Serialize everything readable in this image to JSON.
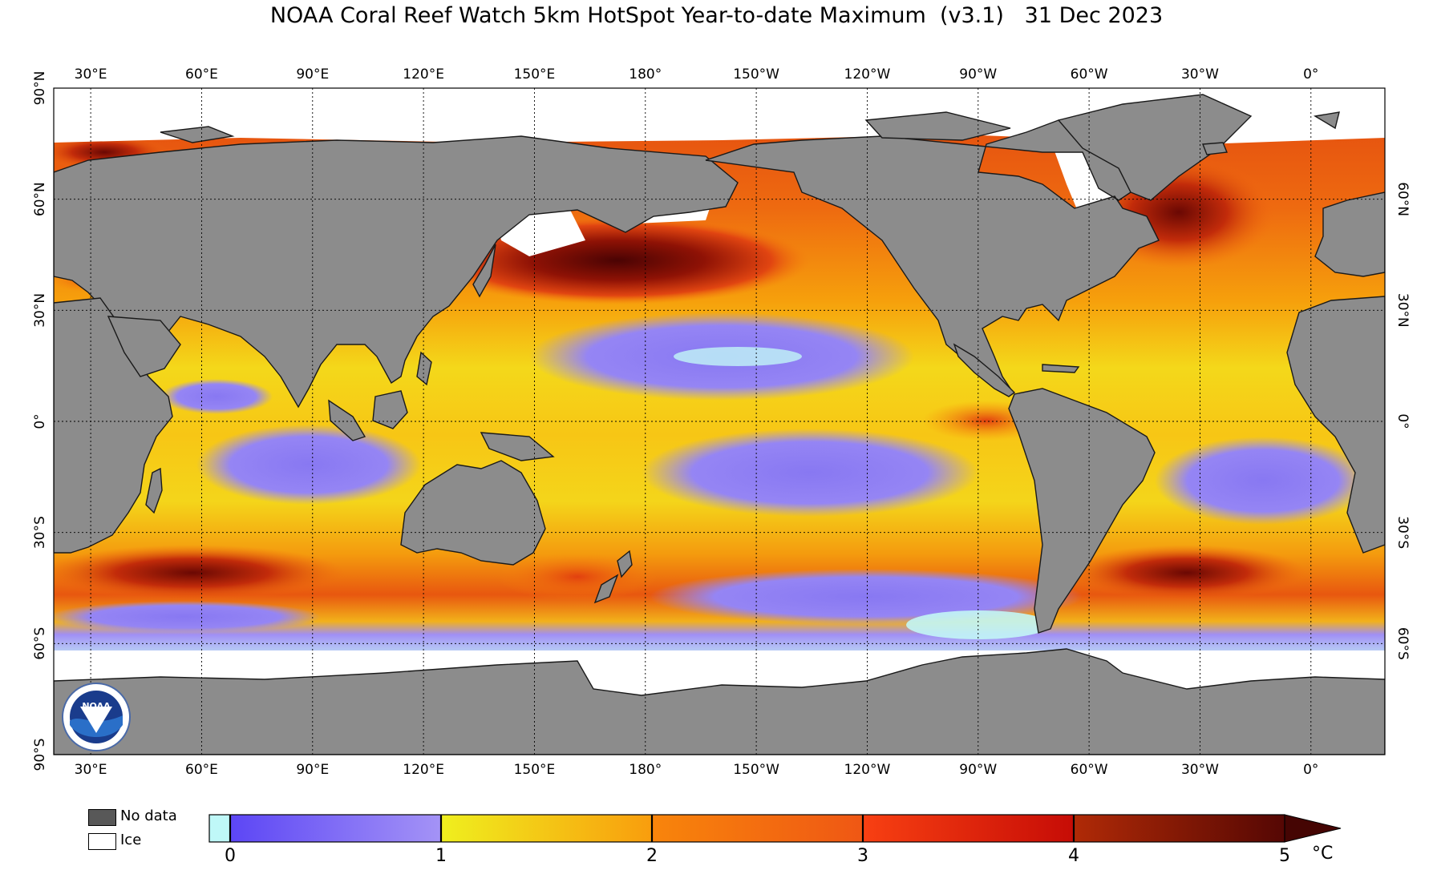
{
  "title": "NOAA Coral Reef Watch 5km HotSpot Year-to-date Maximum  (v3.1)   31 Dec 2023",
  "map": {
    "projection": "equirectangular",
    "lon_range": [
      20,
      380
    ],
    "lat_range": [
      -90,
      90
    ],
    "land_color": "#8c8c8c",
    "ice_color": "#ffffff",
    "grid_spacing_lon": 30,
    "grid_spacing_lat": 30,
    "gridlines_lon": [
      30,
      60,
      90,
      120,
      150,
      180,
      210,
      240,
      270,
      300,
      330,
      360
    ],
    "gridlines_lat": [
      60,
      30,
      0,
      -30,
      -60
    ],
    "lon_labels": [
      "30°E",
      "60°E",
      "90°E",
      "120°E",
      "150°E",
      "180°",
      "150°W",
      "120°W",
      "90°W",
      "60°W",
      "30°W",
      "0°"
    ],
    "lat_labels_left": [
      "90°N",
      "60°N",
      "30°N",
      "0°",
      "30°S",
      "60°S",
      "90°S"
    ],
    "lat_labels_right": [
      "60°N",
      "30°N",
      "0°",
      "30°S",
      "60°S"
    ],
    "logo_text": "NOAA"
  },
  "legend": {
    "no_data_label": "No data",
    "no_data_color": "#585858",
    "ice_label": "Ice",
    "ice_color": "#ffffff"
  },
  "colorbar": {
    "ticks": [
      "0",
      "1",
      "2",
      "3",
      "4",
      "5"
    ],
    "unit": "°C",
    "extend": "max",
    "stops": [
      {
        "value": 0.0,
        "color": "#bff8f8"
      },
      {
        "value": 0.1,
        "color": "#5c46f5"
      },
      {
        "value": 1.0,
        "color": "#a493f6"
      },
      {
        "value": 1.0,
        "color": "#efef1e"
      },
      {
        "value": 2.0,
        "color": "#f99d0d"
      },
      {
        "value": 2.0,
        "color": "#f8850b"
      },
      {
        "value": 3.0,
        "color": "#ef5714"
      },
      {
        "value": 3.0,
        "color": "#f84012"
      },
      {
        "value": 4.0,
        "color": "#c60c06"
      },
      {
        "value": 4.0,
        "color": "#b02a06"
      },
      {
        "value": 5.0,
        "color": "#550704"
      }
    ]
  }
}
